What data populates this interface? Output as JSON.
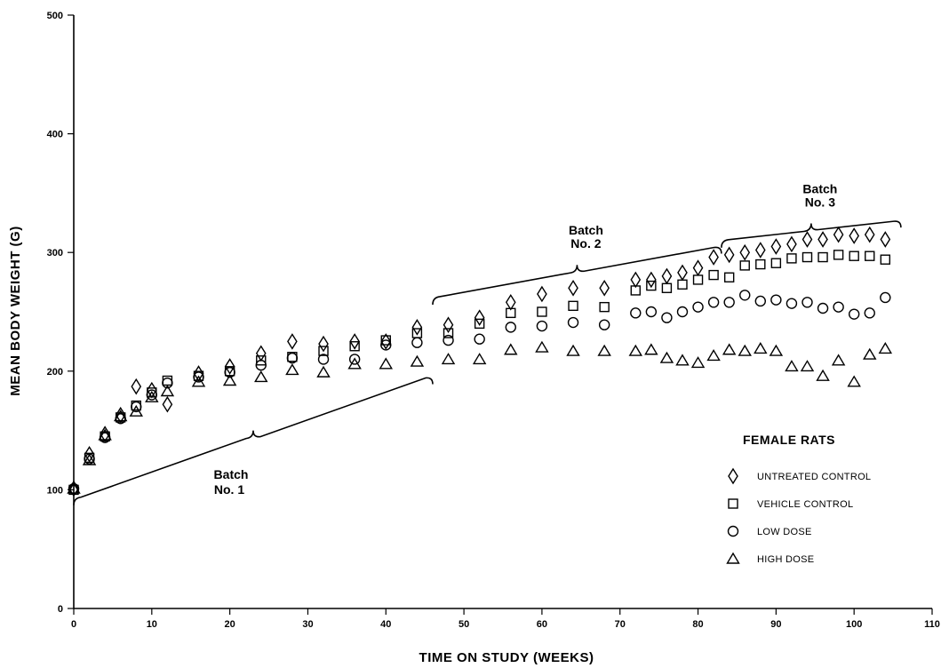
{
  "chart_data": {
    "type": "scatter",
    "title": "",
    "xlabel": "TIME ON STUDY (WEEKS)",
    "ylabel": "MEAN BODY WEIGHT (G)",
    "xlim": [
      0,
      110
    ],
    "ylim": [
      0,
      500
    ],
    "xticks": [
      0,
      10,
      20,
      30,
      40,
      50,
      60,
      70,
      80,
      90,
      100,
      110
    ],
    "yticks": [
      0,
      100,
      200,
      300,
      400,
      500
    ],
    "grid": false,
    "legend": {
      "title": "FEMALE RATS",
      "placement": "right"
    },
    "series": [
      {
        "name": "UNTREATED CONTROL",
        "marker": "diamond",
        "x": [
          0,
          2,
          4,
          6,
          8,
          10,
          12,
          16,
          20,
          24,
          28,
          32,
          36,
          40,
          44,
          48,
          52,
          56,
          60,
          64,
          68,
          72,
          74,
          76,
          78,
          80,
          82,
          84,
          86,
          88,
          90,
          92,
          94,
          96,
          98,
          100,
          102,
          104
        ],
        "y": [
          101,
          130,
          147,
          163,
          187,
          184,
          172,
          198,
          204,
          215,
          225,
          223,
          225,
          225,
          237,
          239,
          245,
          258,
          265,
          270,
          270,
          277,
          277,
          280,
          283,
          287,
          296,
          298,
          300,
          302,
          305,
          307,
          311,
          311,
          315,
          314,
          315,
          311
        ]
      },
      {
        "name": "VEHICLE CONTROL",
        "marker": "square",
        "x": [
          0,
          2,
          4,
          6,
          8,
          10,
          12,
          16,
          20,
          24,
          28,
          32,
          36,
          40,
          44,
          48,
          52,
          56,
          60,
          64,
          68,
          72,
          74,
          76,
          78,
          80,
          82,
          84,
          86,
          88,
          90,
          92,
          94,
          96,
          98,
          100,
          102,
          104
        ],
        "y": [
          100,
          127,
          145,
          161,
          171,
          182,
          192,
          196,
          200,
          209,
          212,
          217,
          221,
          226,
          232,
          232,
          240,
          249,
          250,
          255,
          254,
          268,
          272,
          270,
          273,
          277,
          281,
          279,
          289,
          290,
          291,
          295,
          296,
          296,
          298,
          297,
          297,
          294
        ]
      },
      {
        "name": "LOW DOSE",
        "marker": "circle",
        "x": [
          0,
          2,
          4,
          6,
          8,
          10,
          12,
          16,
          20,
          24,
          28,
          32,
          36,
          40,
          44,
          48,
          52,
          56,
          60,
          64,
          68,
          72,
          74,
          76,
          78,
          80,
          82,
          84,
          86,
          88,
          90,
          92,
          94,
          96,
          98,
          100,
          102,
          104
        ],
        "y": [
          101,
          126,
          144,
          160,
          170,
          180,
          190,
          195,
          199,
          205,
          211,
          210,
          210,
          222,
          224,
          226,
          227,
          237,
          238,
          241,
          239,
          249,
          250,
          245,
          250,
          254,
          258,
          258,
          264,
          259,
          260,
          257,
          258,
          253,
          254,
          248,
          249,
          262
        ]
      },
      {
        "name": "HIGH DOSE",
        "marker": "triangle",
        "x": [
          0,
          2,
          4,
          6,
          8,
          10,
          12,
          16,
          20,
          24,
          28,
          32,
          36,
          40,
          44,
          48,
          52,
          56,
          60,
          64,
          68,
          72,
          74,
          76,
          78,
          80,
          82,
          84,
          86,
          88,
          90,
          92,
          94,
          96,
          98,
          100,
          102,
          104
        ],
        "y": [
          101,
          125,
          146,
          162,
          166,
          178,
          183,
          191,
          192,
          195,
          201,
          199,
          206,
          206,
          208,
          210,
          210,
          218,
          220,
          217,
          217,
          217,
          218,
          211,
          209,
          207,
          213,
          218,
          217,
          219,
          217,
          204,
          204,
          196,
          209,
          191,
          214,
          219
        ]
      }
    ],
    "annotations": [
      {
        "label_line1": "Batch",
        "label_line2": "No. 1",
        "x_range": [
          0,
          46
        ],
        "y_start": 93,
        "y_end": 195
      },
      {
        "label_line1": "Batch",
        "label_line2": "No. 2",
        "x_range": [
          46,
          83
        ],
        "y_start": 262,
        "y_end": 305
      },
      {
        "label_line1": "Batch",
        "label_line2": "No. 3",
        "x_range": [
          83,
          106
        ],
        "y_start": 310,
        "y_end": 327
      }
    ]
  }
}
